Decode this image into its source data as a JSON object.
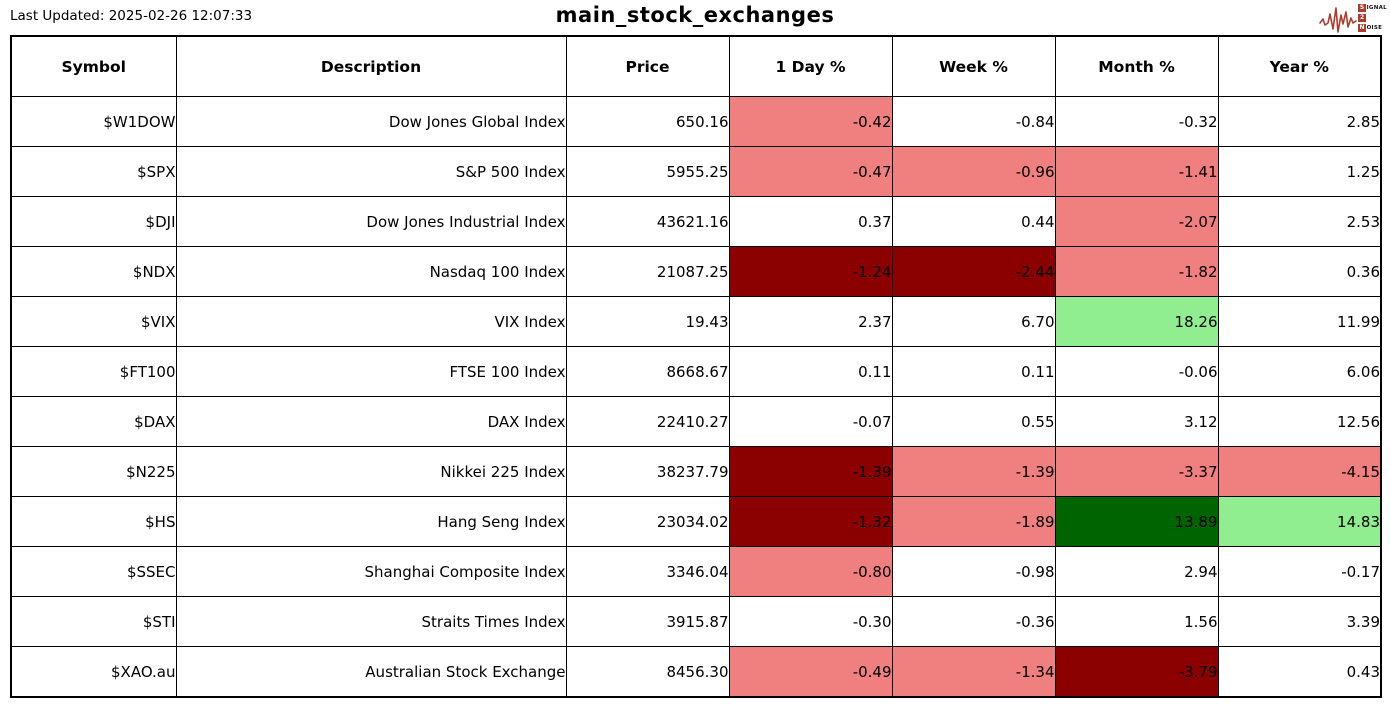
{
  "header": {
    "last_updated": "Last Updated: 2025-02-26 12:07:33",
    "title": "main_stock_exchanges"
  },
  "logo": {
    "line1_initial": "S",
    "line1_rest": "IGNAL",
    "line2_initial": "2",
    "line3_initial": "N",
    "line3_rest": "OISE",
    "wave_color": "#b03a2e"
  },
  "colors": {
    "cell_bg": {
      "down1": "#F08080",
      "down2": "#8B0000",
      "up1": "#90EE90",
      "up2": "#006400"
    },
    "border": "#000000",
    "background": "#ffffff"
  },
  "table": {
    "columns": [
      "Symbol",
      "Description",
      "Price",
      "1 Day %",
      "Week %",
      "Month %",
      "Year %"
    ],
    "column_keys": [
      "symbol",
      "description",
      "price",
      "day",
      "week",
      "month",
      "year"
    ],
    "rows": [
      {
        "cells": [
          "$W1DOW",
          "Dow Jones Global Index",
          "650.16",
          "-0.42",
          "-0.84",
          "-0.32",
          "2.85"
        ],
        "bg": [
          null,
          null,
          null,
          "down1",
          null,
          null,
          null
        ]
      },
      {
        "cells": [
          "$SPX",
          "S&P 500 Index",
          "5955.25",
          "-0.47",
          "-0.96",
          "-1.41",
          "1.25"
        ],
        "bg": [
          null,
          null,
          null,
          "down1",
          "down1",
          "down1",
          null
        ]
      },
      {
        "cells": [
          "$DJI",
          "Dow Jones Industrial Index",
          "43621.16",
          "0.37",
          "0.44",
          "-2.07",
          "2.53"
        ],
        "bg": [
          null,
          null,
          null,
          null,
          null,
          "down1",
          null
        ]
      },
      {
        "cells": [
          "$NDX",
          "Nasdaq 100 Index",
          "21087.25",
          "-1.24",
          "-2.44",
          "-1.82",
          "0.36"
        ],
        "bg": [
          null,
          null,
          null,
          "down2",
          "down2",
          "down1",
          null
        ]
      },
      {
        "cells": [
          "$VIX",
          "VIX Index",
          "19.43",
          "2.37",
          "6.70",
          "18.26",
          "11.99"
        ],
        "bg": [
          null,
          null,
          null,
          null,
          null,
          "up1",
          null
        ]
      },
      {
        "cells": [
          "$FT100",
          "FTSE 100 Index",
          "8668.67",
          "0.11",
          "0.11",
          "-0.06",
          "6.06"
        ],
        "bg": [
          null,
          null,
          null,
          null,
          null,
          null,
          null
        ]
      },
      {
        "cells": [
          "$DAX",
          "DAX Index",
          "22410.27",
          "-0.07",
          "0.55",
          "3.12",
          "12.56"
        ],
        "bg": [
          null,
          null,
          null,
          null,
          null,
          null,
          null
        ]
      },
      {
        "cells": [
          "$N225",
          "Nikkei 225 Index",
          "38237.79",
          "-1.39",
          "-1.39",
          "-3.37",
          "-4.15"
        ],
        "bg": [
          null,
          null,
          null,
          "down2",
          "down1",
          "down1",
          "down1"
        ]
      },
      {
        "cells": [
          "$HS",
          "Hang Seng Index",
          "23034.02",
          "-1.32",
          "-1.89",
          "13.89",
          "14.83"
        ],
        "bg": [
          null,
          null,
          null,
          "down2",
          "down1",
          "up2",
          "up1"
        ]
      },
      {
        "cells": [
          "$SSEC",
          "Shanghai Composite Index",
          "3346.04",
          "-0.80",
          "-0.98",
          "2.94",
          "-0.17"
        ],
        "bg": [
          null,
          null,
          null,
          "down1",
          null,
          null,
          null
        ]
      },
      {
        "cells": [
          "$STI",
          "Straits Times Index",
          "3915.87",
          "-0.30",
          "-0.36",
          "1.56",
          "3.39"
        ],
        "bg": [
          null,
          null,
          null,
          null,
          null,
          null,
          null
        ]
      },
      {
        "cells": [
          "$XAO.au",
          "Australian Stock Exchange",
          "8456.30",
          "-0.49",
          "-1.34",
          "-3.79",
          "0.43"
        ],
        "bg": [
          null,
          null,
          null,
          "down1",
          "down1",
          "down2",
          null
        ]
      }
    ]
  }
}
